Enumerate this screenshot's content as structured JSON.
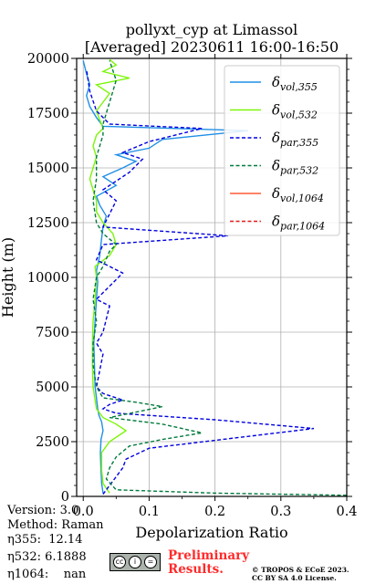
{
  "chart_data": {
    "type": "line",
    "title": "pollyxt_cyp at Limassol",
    "subtitle": "[Averaged] 20230611 16:00-16:50",
    "xlabel": "Depolarization Ratio",
    "ylabel": "Height (m)",
    "xlim": [
      -0.01,
      0.4
    ],
    "ylim": [
      0,
      20000
    ],
    "x_ticks": [
      "0.0",
      "0.1",
      "0.2",
      "0.3",
      "0.4"
    ],
    "y_ticks": [
      "0",
      "2500",
      "5000",
      "7500",
      "10000",
      "12500",
      "15000",
      "17500",
      "20000"
    ],
    "grid": true,
    "legend_position": "top-right",
    "series": [
      {
        "name": "δvol,355",
        "label_main": "δ",
        "label_sub": "vol,355",
        "color": "#1f8fe6",
        "dash": "solid",
        "points": [
          [
            0.03,
            150
          ],
          [
            0.028,
            600
          ],
          [
            0.027,
            1200
          ],
          [
            0.026,
            2000
          ],
          [
            0.027,
            2600
          ],
          [
            0.03,
            3000
          ],
          [
            0.028,
            3400
          ],
          [
            0.024,
            3700
          ],
          [
            0.022,
            4000
          ],
          [
            0.02,
            4500
          ],
          [
            0.018,
            5000
          ],
          [
            0.017,
            6000
          ],
          [
            0.016,
            7000
          ],
          [
            0.018,
            8000
          ],
          [
            0.02,
            9000
          ],
          [
            0.022,
            9800
          ],
          [
            0.02,
            10300
          ],
          [
            0.025,
            11000
          ],
          [
            0.028,
            11800
          ],
          [
            0.03,
            12300
          ],
          [
            0.035,
            12800
          ],
          [
            0.025,
            13300
          ],
          [
            0.02,
            13700
          ],
          [
            0.05,
            14200
          ],
          [
            0.03,
            14600
          ],
          [
            0.06,
            15000
          ],
          [
            0.08,
            15300
          ],
          [
            0.05,
            15600
          ],
          [
            0.1,
            15900
          ],
          [
            0.12,
            16300
          ],
          [
            0.25,
            16700
          ],
          [
            0.03,
            16900
          ],
          [
            0.02,
            17300
          ],
          [
            0.01,
            17800
          ],
          [
            0.005,
            18300
          ],
          [
            0.01,
            18800
          ],
          [
            0.005,
            19300
          ],
          [
            0.0,
            19900
          ]
        ]
      },
      {
        "name": "δvol,532",
        "label_main": "δ",
        "label_sub": "vol,532",
        "color": "#7cf50a",
        "dash": "solid",
        "points": [
          [
            0.04,
            150
          ],
          [
            0.03,
            600
          ],
          [
            0.028,
            1200
          ],
          [
            0.028,
            2000
          ],
          [
            0.04,
            2500
          ],
          [
            0.065,
            3000
          ],
          [
            0.05,
            3300
          ],
          [
            0.03,
            3600
          ],
          [
            0.02,
            4000
          ],
          [
            0.015,
            5000
          ],
          [
            0.014,
            6000
          ],
          [
            0.014,
            7000
          ],
          [
            0.015,
            8000
          ],
          [
            0.018,
            9000
          ],
          [
            0.02,
            10000
          ],
          [
            0.018,
            10500
          ],
          [
            0.04,
            11000
          ],
          [
            0.05,
            11500
          ],
          [
            0.045,
            12000
          ],
          [
            0.03,
            12500
          ],
          [
            0.02,
            13000
          ],
          [
            0.02,
            13500
          ],
          [
            0.015,
            14000
          ],
          [
            0.01,
            14500
          ],
          [
            0.015,
            15000
          ],
          [
            0.02,
            15500
          ],
          [
            0.015,
            16000
          ],
          [
            0.02,
            16500
          ],
          [
            0.03,
            16800
          ],
          [
            0.025,
            17200
          ],
          [
            0.02,
            17600
          ],
          [
            0.03,
            18000
          ],
          [
            0.04,
            18400
          ],
          [
            0.02,
            18800
          ],
          [
            0.07,
            19100
          ],
          [
            0.03,
            19400
          ],
          [
            0.05,
            19700
          ],
          [
            0.04,
            19950
          ]
        ]
      },
      {
        "name": "δpar,355",
        "label_main": "δ",
        "label_sub": "par,355",
        "color": "#0000e0",
        "dash": "dashed",
        "points": [
          [
            0.03,
            100
          ],
          [
            0.04,
            500
          ],
          [
            0.05,
            900
          ],
          [
            0.06,
            1300
          ],
          [
            0.065,
            1700
          ],
          [
            0.1,
            2200
          ],
          [
            0.35,
            3100
          ],
          [
            0.2,
            3500
          ],
          [
            0.05,
            3800
          ],
          [
            0.03,
            4000
          ],
          [
            0.04,
            4200
          ],
          [
            0.06,
            4400
          ],
          [
            0.03,
            4700
          ],
          [
            0.02,
            5000
          ],
          [
            0.03,
            6500
          ],
          [
            0.02,
            7000
          ],
          [
            0.03,
            7500
          ],
          [
            0.04,
            8700
          ],
          [
            0.02,
            9000
          ],
          [
            0.06,
            10200
          ],
          [
            0.02,
            10800
          ],
          [
            0.03,
            11500
          ],
          [
            0.22,
            11900
          ],
          [
            0.03,
            12300
          ],
          [
            0.05,
            13500
          ],
          [
            0.03,
            14000
          ],
          [
            0.07,
            14800
          ],
          [
            0.09,
            15400
          ],
          [
            0.06,
            15700
          ],
          [
            0.1,
            16200
          ],
          [
            0.18,
            16800
          ],
          [
            0.04,
            17000
          ],
          [
            0.02,
            17600
          ],
          [
            0.01,
            18500
          ],
          [
            0.005,
            19500
          ]
        ]
      },
      {
        "name": "δpar,532",
        "label_main": "δ",
        "label_sub": "par,532",
        "color": "#007a3d",
        "dash": "dashed",
        "points": [
          [
            0.4,
            50
          ],
          [
            0.2,
            150
          ],
          [
            0.05,
            300
          ],
          [
            0.035,
            800
          ],
          [
            0.04,
            1300
          ],
          [
            0.05,
            1800
          ],
          [
            0.07,
            2300
          ],
          [
            0.12,
            2600
          ],
          [
            0.18,
            2900
          ],
          [
            0.12,
            3300
          ],
          [
            0.04,
            3600
          ],
          [
            0.12,
            4100
          ],
          [
            0.08,
            4300
          ],
          [
            0.03,
            4500
          ],
          [
            0.02,
            5000
          ],
          [
            0.015,
            6000
          ],
          [
            0.015,
            7000
          ],
          [
            0.02,
            8000
          ],
          [
            0.015,
            9000
          ],
          [
            0.02,
            10000
          ],
          [
            0.03,
            10500
          ],
          [
            0.04,
            11200
          ],
          [
            0.05,
            11500
          ],
          [
            0.03,
            12000
          ],
          [
            0.02,
            12500
          ],
          [
            0.015,
            13500
          ],
          [
            0.02,
            14500
          ],
          [
            0.02,
            15500
          ],
          [
            0.03,
            16500
          ],
          [
            0.03,
            17000
          ],
          [
            0.04,
            18000
          ],
          [
            0.05,
            19000
          ],
          [
            0.04,
            19900
          ]
        ]
      },
      {
        "name": "δvol,1064",
        "label_main": "δ",
        "label_sub": "vol,1064",
        "color": "#ff5a36",
        "dash": "solid",
        "points": []
      },
      {
        "name": "δpar,1064",
        "label_main": "δ",
        "label_sub": "par,1064",
        "color": "#e01e1e",
        "dash": "dashed",
        "points": []
      }
    ]
  },
  "meta": {
    "version": "Version: 3.0",
    "method": "Method: Raman",
    "eta355": "η355:  12.14",
    "eta532": "η532: 6.1888",
    "eta1064": "η1064:    nan"
  },
  "license": {
    "cc_symbols": [
      "cc",
      "i",
      "="
    ],
    "preliminary_line1": "Preliminary",
    "preliminary_line2": "Results.",
    "copyright_line1": "© TROPOS & ECoE 2023.",
    "copyright_line2": "CC BY SA 4.0 License."
  }
}
